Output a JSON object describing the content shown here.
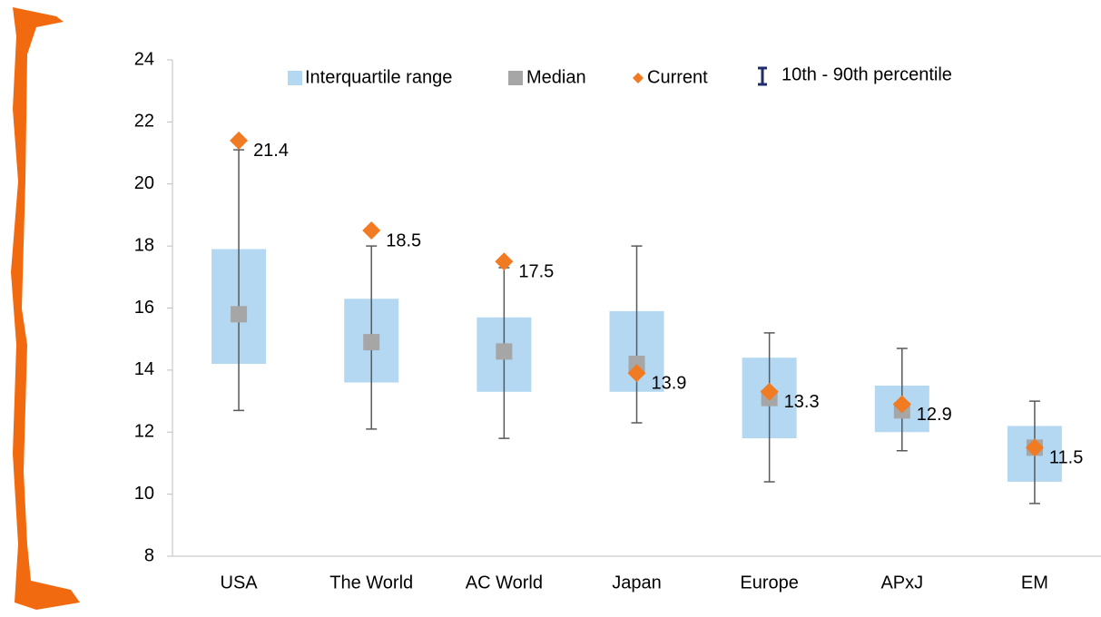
{
  "chart_data": {
    "type": "box",
    "categories": [
      "USA",
      "The World",
      "AC World",
      "Japan",
      "Europe",
      "APxJ",
      "EM"
    ],
    "series": [
      {
        "name": "Interquartile range",
        "color": "#b4d8f2",
        "low": [
          14.2,
          13.6,
          13.3,
          13.3,
          11.8,
          12.0,
          10.4
        ],
        "high": [
          17.9,
          16.3,
          15.7,
          15.9,
          14.4,
          13.5,
          12.2
        ]
      },
      {
        "name": "Median",
        "color": "#a6a6a6",
        "values": [
          15.8,
          14.9,
          14.6,
          14.2,
          13.1,
          12.7,
          11.5
        ]
      },
      {
        "name": "Current",
        "color": "#f07b22",
        "values": [
          21.4,
          18.5,
          17.5,
          13.9,
          13.3,
          12.9,
          11.5
        ]
      },
      {
        "name": "10th - 90th percentile",
        "color": "#1f2d6b",
        "low": [
          12.7,
          12.1,
          11.8,
          12.3,
          10.4,
          11.4,
          9.7
        ],
        "high": [
          21.1,
          18.0,
          17.3,
          18.0,
          15.2,
          14.7,
          13.0
        ]
      }
    ],
    "ylim": [
      8,
      24
    ],
    "yticks": [
      8,
      10,
      12,
      14,
      16,
      18,
      20,
      22,
      24
    ]
  }
}
